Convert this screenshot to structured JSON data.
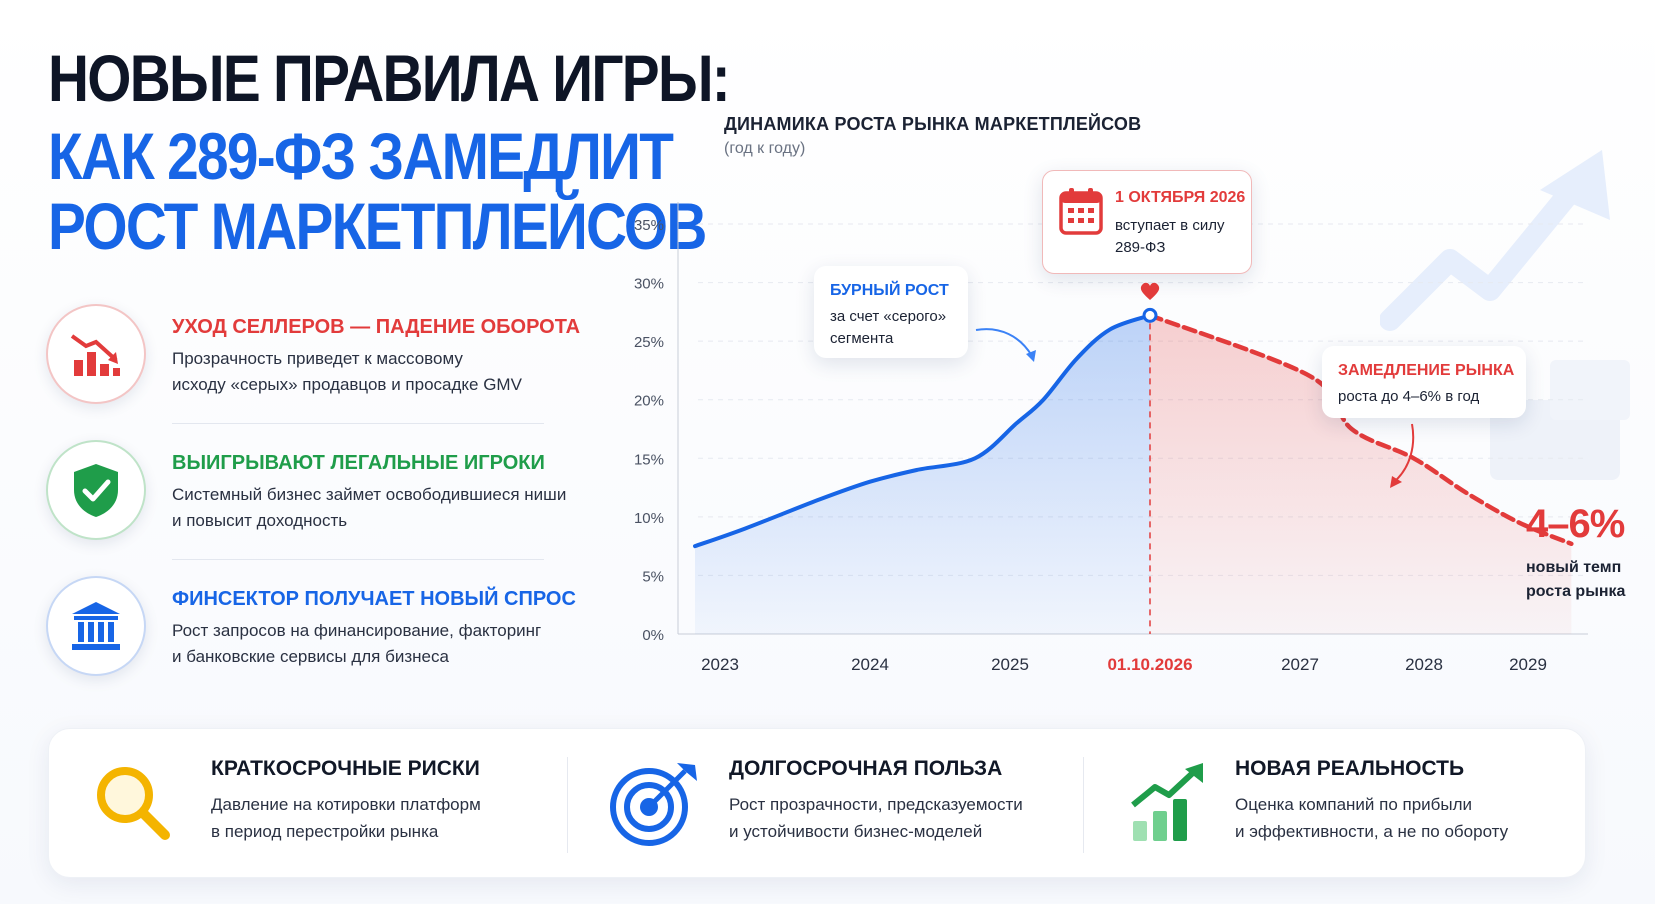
{
  "title": {
    "line1": "НОВЫЕ ПРАВИЛА ИГРЫ:",
    "line2": "КАК 289-ФЗ ЗАМЕДЛИТ",
    "line3": "РОСТ МАРКЕТПЛЕЙСОВ"
  },
  "features": [
    {
      "heading": "УХОД СЕЛЛЕРОВ — ПАДЕНИЕ ОБОРОТА",
      "line1": "Прозрачность приведет к массовому",
      "line2": "исходу «серых» продавцов и просадке GMV",
      "icon": "falling-chart-icon",
      "color": "#e23b3b"
    },
    {
      "heading": "ВЫИГРЫВАЮТ ЛЕГАЛЬНЫЕ ИГРОКИ",
      "line1": "Системный бизнес займет освободившиеся ниши",
      "line2": "и повысит доходность",
      "icon": "shield-check-icon",
      "color": "#1f9d4a"
    },
    {
      "heading": "ФИНСЕКТОР ПОЛУЧАЕТ НОВЫЙ СПРОС",
      "line1": "Рост запросов на финансирование, факторинг",
      "line2": "и банковские сервисы для бизнеса",
      "icon": "bank-icon",
      "color": "#1765e6"
    }
  ],
  "chart_data": {
    "type": "line",
    "title": "ДИНАМИКА РОСТА РЫНКА МАРКЕТПЛЕЙСОВ",
    "subtitle": "(год к году)",
    "xlabel": "",
    "ylabel": "",
    "y_ticks": [
      "35%",
      "30%",
      "25%",
      "20%",
      "15%",
      "10%",
      "5%",
      "0%"
    ],
    "x_ticks": [
      "2023",
      "2024",
      "2025",
      "01.10.2026",
      "2027",
      "2028",
      "2029"
    ],
    "ylim": [
      0,
      35
    ],
    "grid": true,
    "series": [
      {
        "segment": "actual",
        "color": "#1765e6",
        "points": [
          {
            "x": "2022-11",
            "y": 7.5
          },
          {
            "x": "2023-03",
            "y": 9
          },
          {
            "x": "2023-09",
            "y": 11.5
          },
          {
            "x": "2024-01",
            "y": 13
          },
          {
            "x": "2024-05",
            "y": 14
          },
          {
            "x": "2024-10",
            "y": 15
          },
          {
            "x": "2025-02",
            "y": 18
          },
          {
            "x": "2025-06",
            "y": 20
          },
          {
            "x": "2025-11",
            "y": 23.5
          },
          {
            "x": "2026-04",
            "y": 26
          },
          {
            "x": "2026-10",
            "y": 27.2
          }
        ]
      },
      {
        "segment": "forecast",
        "color": "#e23b3b",
        "points": [
          {
            "x": "2026-10",
            "y": 27.2
          },
          {
            "x": "2027-02",
            "y": 22
          },
          {
            "x": "2027-06",
            "y": 17.5
          },
          {
            "x": "2027-12",
            "y": 15
          },
          {
            "x": "2028-06",
            "y": 12
          },
          {
            "x": "2028-12",
            "y": 9.5
          },
          {
            "x": "2029-06",
            "y": 7.7
          }
        ]
      }
    ],
    "annotations": {
      "law": {
        "date": "1 ОКТЯБРЯ 2026",
        "line1": "вступает в силу",
        "line2": "289-ФЗ"
      },
      "boom": {
        "heading": "БУРНЫЙ РОСТ",
        "line1": "за счет «серого»",
        "line2": "сегмента"
      },
      "slowdown": {
        "heading": "ЗАМЕДЛЕНИЕ РЫНКА",
        "line1": "роста до 4–6% в год"
      },
      "final": {
        "value": "4–6%",
        "line1": "новый темп",
        "line2": "роста рынка"
      }
    }
  },
  "bottom": [
    {
      "heading": "КРАТКОСРОЧНЫЕ РИСКИ",
      "line1": "Давление на котировки платформ",
      "line2": "в период перестройки рынка",
      "icon": "magnifier-icon"
    },
    {
      "heading": "ДОЛГОСРОЧНАЯ ПОЛЬЗА",
      "line1": "Рост прозрачности, предсказуемости",
      "line2": "и устойчивости бизнес-моделей",
      "icon": "target-icon"
    },
    {
      "heading": "НОВАЯ РЕАЛЬНОСТЬ",
      "line1": "Оценка компаний по прибыли",
      "line2": "и эффективности, а не по обороту",
      "icon": "growth-chart-icon"
    }
  ],
  "colors": {
    "accent_blue": "#1765e6",
    "accent_red": "#e23b3b",
    "accent_green": "#1f9d4a",
    "accent_yellow": "#f4b400"
  }
}
